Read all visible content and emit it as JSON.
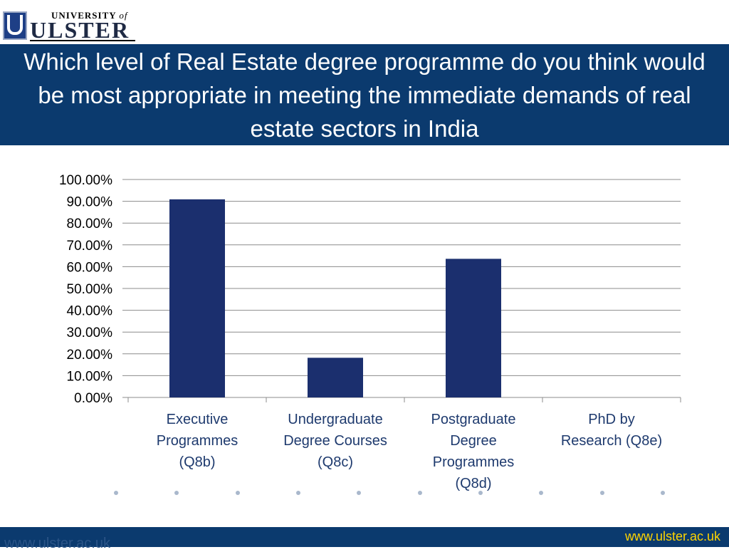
{
  "logo": {
    "small_text": "UNIVERSITY",
    "small_of": "of",
    "big_text": "ULSTER"
  },
  "header": {
    "title": "Which level of Real Estate degree programme do you think would be most appropriate in meeting the immediate demands of real estate sectors in India"
  },
  "chart_data": {
    "type": "bar",
    "categories": [
      [
        "Executive",
        "Programmes",
        "(Q8b)"
      ],
      [
        "Undergraduate",
        "Degree Courses",
        "(Q8c)"
      ],
      [
        "Postgraduate",
        "Degree",
        "Programmes",
        "(Q8d)"
      ],
      [
        "PhD by",
        "Research (Q8e)"
      ]
    ],
    "values": [
      0.909,
      0.182,
      0.636,
      0.0
    ],
    "ylim": [
      0,
      1
    ],
    "yticks": [
      "0.00%",
      "10.00%",
      "20.00%",
      "30.00%",
      "40.00%",
      "50.00%",
      "60.00%",
      "70.00%",
      "80.00%",
      "90.00%",
      "100.00%"
    ],
    "grid": true,
    "bar_color": "#1b2f6e",
    "title": "",
    "xlabel": "",
    "ylabel": ""
  },
  "footer": {
    "ghost_url": "www.ulster.ac.uk",
    "url": "www.ulster.ac.uk"
  },
  "colors": {
    "brand": "#0b3a6e",
    "footer_link": "#ffd400"
  }
}
